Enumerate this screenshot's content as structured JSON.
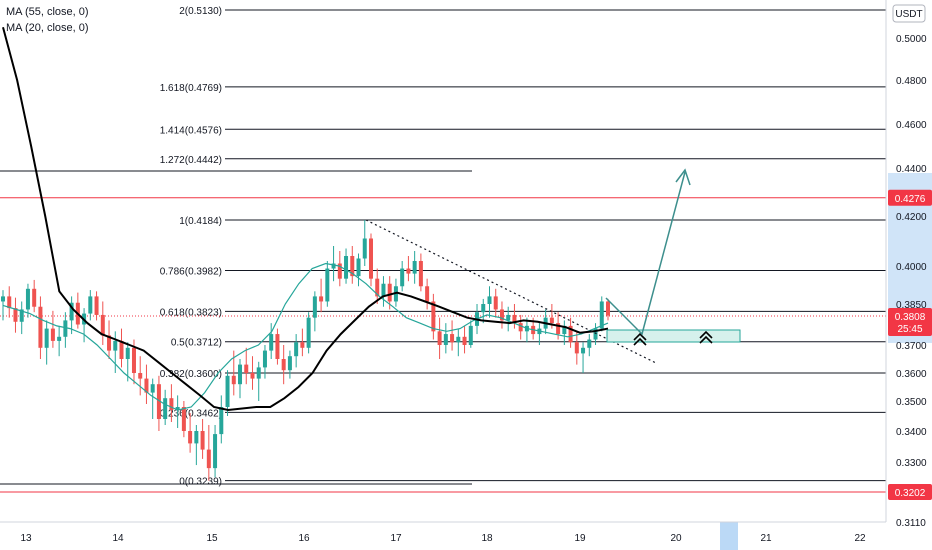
{
  "indicators": [
    "MA (55, close, 0)",
    "MA (20, close, 0)"
  ],
  "currency": "USDT",
  "chart_data": {
    "type": "candlestick",
    "x_ticks": [
      {
        "label": "13",
        "bold": false
      },
      {
        "label": "14",
        "bold": false
      },
      {
        "label": "15",
        "bold": true
      },
      {
        "label": "16",
        "bold": false
      },
      {
        "label": "17",
        "bold": false
      },
      {
        "label": "18",
        "bold": false
      },
      {
        "label": "19",
        "bold": false
      },
      {
        "label": "20",
        "bold": false
      },
      {
        "label": "21",
        "bold": false
      },
      {
        "label": "22",
        "bold": false
      }
    ],
    "y_ticks": [
      0.5,
      0.48,
      0.46,
      0.44,
      0.42,
      0.4,
      0.385,
      0.37,
      0.36,
      0.35,
      0.34,
      0.33,
      0.311
    ],
    "y_tick_labels": [
      "0.5000",
      "0.4800",
      "0.4600",
      "0.4400",
      "0.4200",
      "0.4000",
      "0.3850",
      "0.3700",
      "0.3600",
      "0.3500",
      "0.3400",
      "0.3300",
      "0.3110"
    ],
    "fib_levels": [
      {
        "label": "2(0.5130)",
        "value": 0.513
      },
      {
        "label": "1.618(0.4769)",
        "value": 0.4769
      },
      {
        "label": "1.414(0.4576)",
        "value": 0.4576
      },
      {
        "label": "1.272(0.4442)",
        "value": 0.4442
      },
      {
        "label": "1(0.4184)",
        "value": 0.4184
      },
      {
        "label": "0.786(0.3982)",
        "value": 0.3982
      },
      {
        "label": "0.618(0.3823)",
        "value": 0.3823
      },
      {
        "label": "0.5(0.3712)",
        "value": 0.3712
      },
      {
        "label": "0.382(0.3600)",
        "value": 0.36
      },
      {
        "label": "0.236(0.3462)",
        "value": 0.3462
      },
      {
        "label": "0(0.3239)",
        "value": 0.3239
      }
    ],
    "red_levels": [
      0.4276,
      0.3202
    ],
    "price_badges": [
      {
        "label": "0.4276",
        "value": 0.4276
      },
      {
        "label": "0.3202",
        "value": 0.3202
      }
    ],
    "current_price": {
      "label": "0.3808",
      "countdown": "25:45",
      "value": 0.3808
    },
    "candles_ohlc": [
      [
        0.386,
        0.3905,
        0.379,
        0.388
      ],
      [
        0.388,
        0.392,
        0.38,
        0.3835
      ],
      [
        0.3835,
        0.3875,
        0.3745,
        0.3785
      ],
      [
        0.3785,
        0.386,
        0.374,
        0.383
      ],
      [
        0.383,
        0.393,
        0.38,
        0.391
      ],
      [
        0.391,
        0.3945,
        0.382,
        0.384
      ],
      [
        0.384,
        0.388,
        0.365,
        0.369
      ],
      [
        0.369,
        0.379,
        0.363,
        0.376
      ],
      [
        0.376,
        0.3825,
        0.369,
        0.3715
      ],
      [
        0.3715,
        0.377,
        0.366,
        0.373
      ],
      [
        0.373,
        0.382,
        0.369,
        0.379
      ],
      [
        0.379,
        0.388,
        0.374,
        0.3855
      ],
      [
        0.3855,
        0.3895,
        0.376,
        0.3775
      ],
      [
        0.3775,
        0.3835,
        0.371,
        0.3815
      ],
      [
        0.3815,
        0.3905,
        0.379,
        0.388
      ],
      [
        0.388,
        0.39,
        0.379,
        0.381
      ],
      [
        0.381,
        0.386,
        0.37,
        0.3735
      ],
      [
        0.3735,
        0.379,
        0.365,
        0.368
      ],
      [
        0.368,
        0.375,
        0.36,
        0.3715
      ],
      [
        0.3715,
        0.376,
        0.362,
        0.365
      ],
      [
        0.365,
        0.371,
        0.357,
        0.369
      ],
      [
        0.369,
        0.372,
        0.356,
        0.36
      ],
      [
        0.36,
        0.366,
        0.352,
        0.358
      ],
      [
        0.358,
        0.363,
        0.349,
        0.353
      ],
      [
        0.353,
        0.358,
        0.344,
        0.356
      ],
      [
        0.356,
        0.359,
        0.34,
        0.344
      ],
      [
        0.344,
        0.354,
        0.342,
        0.351
      ],
      [
        0.351,
        0.356,
        0.343,
        0.347
      ],
      [
        0.347,
        0.352,
        0.341,
        0.348
      ],
      [
        0.348,
        0.35,
        0.338,
        0.34
      ],
      [
        0.34,
        0.346,
        0.333,
        0.336
      ],
      [
        0.336,
        0.342,
        0.329,
        0.34
      ],
      [
        0.34,
        0.344,
        0.331,
        0.334
      ],
      [
        0.334,
        0.342,
        0.3239,
        0.328
      ],
      [
        0.328,
        0.342,
        0.325,
        0.339
      ],
      [
        0.339,
        0.352,
        0.336,
        0.348
      ],
      [
        0.348,
        0.361,
        0.345,
        0.359
      ],
      [
        0.359,
        0.368,
        0.352,
        0.356
      ],
      [
        0.356,
        0.365,
        0.351,
        0.363
      ],
      [
        0.363,
        0.369,
        0.356,
        0.36
      ],
      [
        0.36,
        0.366,
        0.354,
        0.358
      ],
      [
        0.358,
        0.364,
        0.35,
        0.362
      ],
      [
        0.362,
        0.37,
        0.358,
        0.368
      ],
      [
        0.368,
        0.378,
        0.365,
        0.374
      ],
      [
        0.374,
        0.376,
        0.363,
        0.365
      ],
      [
        0.365,
        0.37,
        0.356,
        0.361
      ],
      [
        0.361,
        0.368,
        0.358,
        0.366
      ],
      [
        0.366,
        0.374,
        0.362,
        0.371
      ],
      [
        0.371,
        0.376,
        0.366,
        0.369
      ],
      [
        0.369,
        0.382,
        0.367,
        0.38
      ],
      [
        0.38,
        0.39,
        0.375,
        0.388
      ],
      [
        0.388,
        0.395,
        0.382,
        0.386
      ],
      [
        0.386,
        0.402,
        0.384,
        0.399
      ],
      [
        0.399,
        0.408,
        0.394,
        0.401
      ],
      [
        0.401,
        0.406,
        0.392,
        0.395
      ],
      [
        0.395,
        0.407,
        0.393,
        0.404
      ],
      [
        0.404,
        0.408,
        0.393,
        0.396
      ],
      [
        0.396,
        0.405,
        0.392,
        0.403
      ],
      [
        0.403,
        0.4184,
        0.4,
        0.411
      ],
      [
        0.411,
        0.413,
        0.392,
        0.395
      ],
      [
        0.395,
        0.399,
        0.385,
        0.388
      ],
      [
        0.388,
        0.396,
        0.384,
        0.393
      ],
      [
        0.393,
        0.396,
        0.383,
        0.386
      ],
      [
        0.386,
        0.395,
        0.384,
        0.392
      ],
      [
        0.392,
        0.402,
        0.39,
        0.399
      ],
      [
        0.399,
        0.404,
        0.394,
        0.397
      ],
      [
        0.397,
        0.406,
        0.393,
        0.402
      ],
      [
        0.402,
        0.405,
        0.39,
        0.392
      ],
      [
        0.392,
        0.395,
        0.383,
        0.386
      ],
      [
        0.386,
        0.389,
        0.372,
        0.375
      ],
      [
        0.375,
        0.38,
        0.365,
        0.37
      ],
      [
        0.37,
        0.378,
        0.367,
        0.374
      ],
      [
        0.374,
        0.379,
        0.368,
        0.371
      ],
      [
        0.371,
        0.376,
        0.366,
        0.373
      ],
      [
        0.373,
        0.377,
        0.367,
        0.37
      ],
      [
        0.37,
        0.379,
        0.369,
        0.377
      ],
      [
        0.377,
        0.385,
        0.374,
        0.382
      ],
      [
        0.382,
        0.387,
        0.378,
        0.385
      ],
      [
        0.385,
        0.392,
        0.38,
        0.388
      ],
      [
        0.388,
        0.391,
        0.38,
        0.383
      ],
      [
        0.383,
        0.386,
        0.376,
        0.379
      ],
      [
        0.379,
        0.384,
        0.375,
        0.381
      ],
      [
        0.381,
        0.385,
        0.376,
        0.378
      ],
      [
        0.378,
        0.381,
        0.372,
        0.375
      ],
      [
        0.375,
        0.38,
        0.371,
        0.377
      ],
      [
        0.377,
        0.38,
        0.372,
        0.374
      ],
      [
        0.374,
        0.378,
        0.37,
        0.376
      ],
      [
        0.376,
        0.383,
        0.374,
        0.38
      ],
      [
        0.38,
        0.385,
        0.376,
        0.378
      ],
      [
        0.378,
        0.382,
        0.372,
        0.374
      ],
      [
        0.374,
        0.379,
        0.37,
        0.377
      ],
      [
        0.377,
        0.38,
        0.369,
        0.371
      ],
      [
        0.371,
        0.375,
        0.363,
        0.367
      ],
      [
        0.367,
        0.371,
        0.36,
        0.369
      ],
      [
        0.369,
        0.374,
        0.366,
        0.372
      ],
      [
        0.372,
        0.378,
        0.37,
        0.376
      ],
      [
        0.376,
        0.388,
        0.375,
        0.386
      ],
      [
        0.386,
        0.387,
        0.379,
        0.3808
      ]
    ],
    "ma20": [
      0.3845,
      0.383,
      0.3815,
      0.379,
      0.377,
      0.376,
      0.374,
      0.37,
      0.365,
      0.36,
      0.356,
      0.352,
      0.349,
      0.347,
      0.348,
      0.353,
      0.36,
      0.365,
      0.368,
      0.37,
      0.375,
      0.385,
      0.393,
      0.399,
      0.401,
      0.4,
      0.397,
      0.393,
      0.388,
      0.384,
      0.38,
      0.378,
      0.376,
      0.375,
      0.376,
      0.379,
      0.381,
      0.38,
      0.378,
      0.376,
      0.375,
      0.374,
      0.373,
      0.374,
      0.376,
      0.378
    ],
    "ma55": [
      0.505,
      0.48,
      0.45,
      0.42,
      0.39,
      0.383,
      0.378,
      0.374,
      0.372,
      0.37,
      0.368,
      0.364,
      0.36,
      0.356,
      0.352,
      0.348,
      0.347,
      0.3475,
      0.348,
      0.348,
      0.351,
      0.355,
      0.36,
      0.368,
      0.374,
      0.379,
      0.384,
      0.388,
      0.3895,
      0.388,
      0.386,
      0.384,
      0.382,
      0.38,
      0.379,
      0.3785,
      0.378,
      0.379,
      0.3785,
      0.3775,
      0.3765,
      0.3745,
      0.375,
      0.376
    ]
  }
}
